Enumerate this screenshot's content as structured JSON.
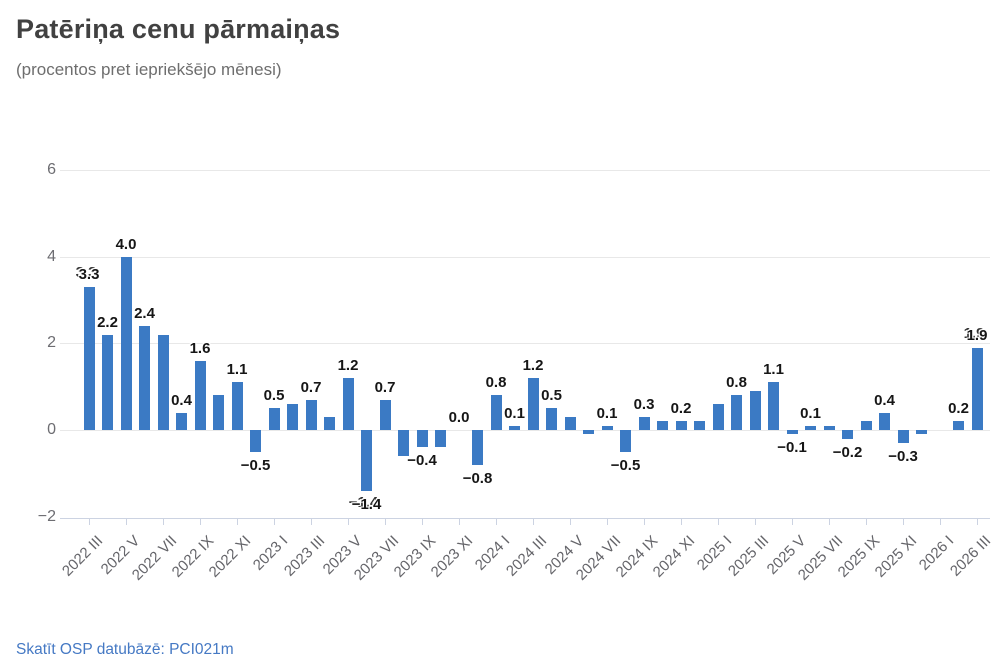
{
  "title": "Patēriņa cenu pārmaiņas",
  "subtitle": "(procentos pret iepriekšējo mēnesi)",
  "footer_link": {
    "text": "Skatīt OSP datubāzē: PCI021m",
    "table_code": "PCI021m"
  },
  "colors": {
    "bar": "#3b7ac4",
    "grid": "#e8e8e8",
    "axis": "#ccd3e2",
    "axis_label": "#6d6d72",
    "x_label": "#646469",
    "title": "#414141",
    "subtitle": "#6e6e6e",
    "data_label": "#161616",
    "link": "#4579c4",
    "background": "#ffffff"
  },
  "chart_data": {
    "type": "bar",
    "title": "Patēriņa cenu pārmaiņas",
    "subtitle": "(procentos pret iepriekšējo mēnesi)",
    "legend": "none",
    "grid": "horizontal",
    "ylim": [
      -2,
      6
    ],
    "y_ticks": [
      6,
      4,
      2,
      0,
      -2
    ],
    "y_tick_labels": [
      "6",
      "4",
      "2",
      "0",
      "−2"
    ],
    "x_tick_every": 2,
    "x_tick_labels": [
      "2022 III",
      "2022 V",
      "2022 VII",
      "2022 IX",
      "2022 XI",
      "2023 I",
      "2023 III",
      "2023 V",
      "2023 VII",
      "2023 IX",
      "2023 XI",
      "2024 I",
      "2024 III",
      "2024 V",
      "2024 VII",
      "2024 IX",
      "2024 XI",
      "2025 I",
      "2025 III",
      "2025 V",
      "2025 VII",
      "2025 IX",
      "2025 XI",
      "2026 I",
      "2026 III"
    ],
    "categories": [
      "2022 III",
      "2022 IV",
      "2022 V",
      "2022 VI",
      "2022 VII",
      "2022 VIII",
      "2022 IX",
      "2022 X",
      "2022 XI",
      "2022 XII",
      "2023 I",
      "2023 II",
      "2023 III",
      "2023 IV",
      "2023 V",
      "2023 VI",
      "2023 VII",
      "2023 VIII",
      "2023 IX",
      "2023 X",
      "2023 XI",
      "2023 XII",
      "2024 I",
      "2024 II",
      "2024 III",
      "2024 IV",
      "2024 V",
      "2024 VI",
      "2024 VII",
      "2024 VIII",
      "2024 IX",
      "2024 X",
      "2024 XI",
      "2024 XII",
      "2025 I",
      "2025 II",
      "2025 III",
      "2025 IV",
      "2025 V",
      "2025 VI",
      "2025 VII",
      "2025 VIII",
      "2025 IX",
      "2025 X",
      "2025 XI",
      "2025 XII",
      "2026 I",
      "2026 II",
      "2026 III"
    ],
    "values": [
      3.3,
      2.2,
      4.0,
      2.4,
      2.2,
      0.4,
      1.6,
      0.8,
      1.1,
      -0.5,
      0.5,
      0.6,
      0.7,
      0.3,
      1.2,
      -1.4,
      0.7,
      -0.6,
      -0.4,
      -0.4,
      0.0,
      -0.8,
      0.8,
      0.1,
      1.2,
      0.5,
      0.3,
      -0.1,
      0.1,
      -0.5,
      0.3,
      0.2,
      0.2,
      0.2,
      0.6,
      0.8,
      0.9,
      1.1,
      -0.1,
      0.1,
      0.1,
      -0.2,
      0.2,
      0.4,
      -0.3,
      -0.1,
      0.0,
      0.2,
      1.9
    ],
    "point_labels": [
      "3.3",
      "2.2",
      "4.0",
      "2.4",
      null,
      "0.4",
      "1.6",
      null,
      "1.1",
      "−0.5",
      "0.5",
      null,
      "0.7",
      null,
      "1.2",
      "−1.4",
      "0.7",
      null,
      "−0.4",
      null,
      "0.0",
      "−0.8",
      "0.8",
      "0.1",
      "1.2",
      "0.5",
      null,
      null,
      "0.1",
      "−0.5",
      "0.3",
      null,
      "0.2",
      null,
      null,
      "0.8",
      null,
      "1.1",
      "−0.1",
      "0.1",
      null,
      "−0.2",
      null,
      "0.4",
      "−0.3",
      null,
      null,
      "0.2",
      "1.9"
    ],
    "doubled_label_indexes": [
      0,
      15,
      48
    ]
  }
}
